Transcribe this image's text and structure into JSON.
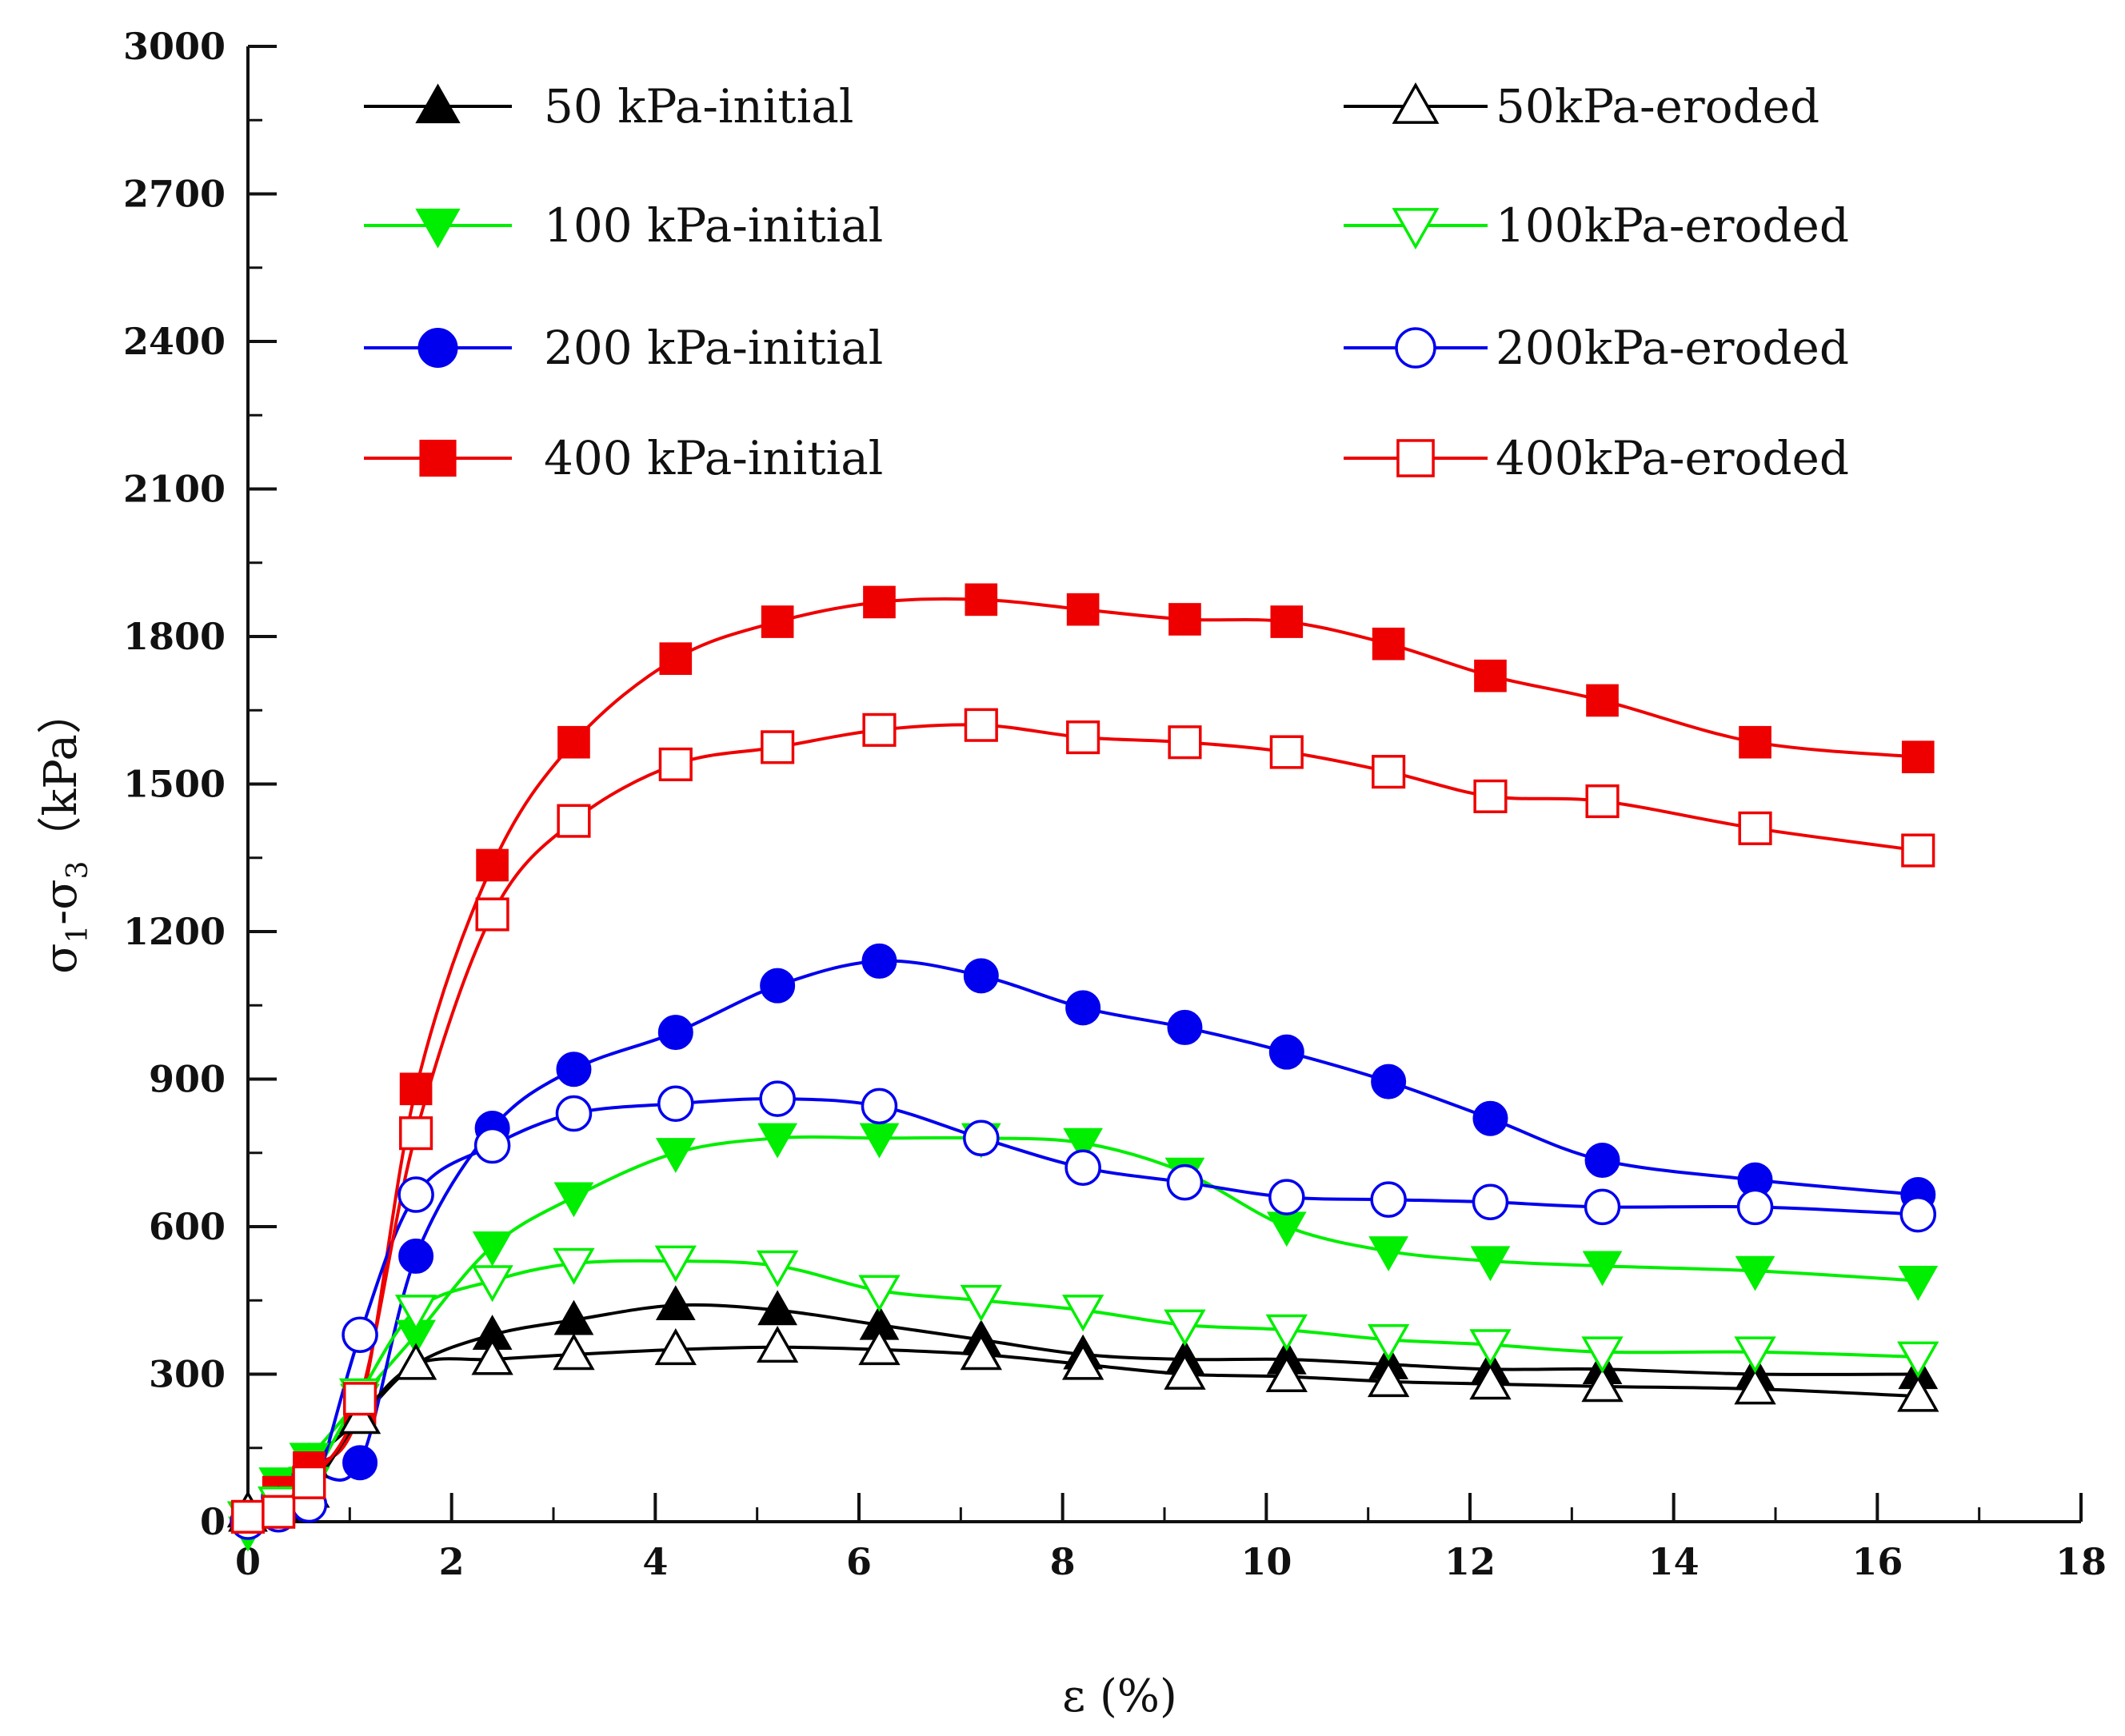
{
  "chart_data": {
    "type": "line",
    "title": "",
    "xlabel": "ε (%)",
    "ylabel": "σ1-σ3（kPa）",
    "ylabel_parts": {
      "sigma1": "σ",
      "sub1": "1",
      "dash": "-σ",
      "sub3": "3",
      "unit": "（kPa）"
    },
    "xlim": [
      0,
      18
    ],
    "ylim": [
      0,
      3000
    ],
    "xticks": [
      0,
      2,
      4,
      6,
      8,
      10,
      12,
      14,
      16,
      18
    ],
    "yticks": [
      0,
      300,
      600,
      900,
      1200,
      1500,
      1800,
      2100,
      2400,
      2700,
      3000
    ],
    "legend": "top, two columns",
    "x": [
      0.0,
      0.3,
      0.6,
      1.1,
      1.65,
      2.4,
      3.2,
      4.2,
      5.2,
      6.2,
      7.2,
      8.2,
      9.2,
      10.2,
      11.2,
      12.2,
      13.3,
      14.8,
      16.4
    ],
    "series": [
      {
        "name": "50 kPa-initial",
        "color": "#000000",
        "marker": "triangle-up",
        "filled": true,
        "values": [
          10,
          60,
          120,
          210,
          320,
          380,
          410,
          440,
          430,
          400,
          370,
          340,
          330,
          330,
          320,
          310,
          310,
          300,
          300
        ]
      },
      {
        "name": "100 kPa-initial",
        "color": "#00ee00",
        "marker": "triangle-down",
        "filled": true,
        "values": [
          -20,
          80,
          130,
          250,
          380,
          560,
          660,
          750,
          780,
          780,
          780,
          770,
          710,
          600,
          550,
          530,
          520,
          510,
          490
        ]
      },
      {
        "name": "200 kPa-initial",
        "color": "#0000ee",
        "marker": "circle",
        "filled": true,
        "values": [
          0,
          50,
          100,
          120,
          540,
          800,
          920,
          995,
          1090,
          1140,
          1110,
          1045,
          1005,
          955,
          895,
          820,
          735,
          695,
          665
        ]
      },
      {
        "name": "400 kPa-initial",
        "color": "#ee0000",
        "marker": "square",
        "filled": true,
        "values": [
          10,
          60,
          110,
          230,
          880,
          1335,
          1585,
          1755,
          1830,
          1870,
          1875,
          1855,
          1835,
          1830,
          1785,
          1720,
          1670,
          1585,
          1555
        ]
      },
      {
        "name": "50kPa-eroded",
        "color": "#000000",
        "marker": "triangle-up",
        "filled": false,
        "values": [
          20,
          30,
          60,
          210,
          320,
          330,
          340,
          350,
          355,
          350,
          340,
          320,
          300,
          295,
          285,
          280,
          275,
          270,
          255
        ]
      },
      {
        "name": "100kPa-eroded",
        "color": "#00ee00",
        "marker": "triangle-down",
        "filled": false,
        "values": [
          10,
          40,
          80,
          260,
          430,
          490,
          525,
          530,
          520,
          470,
          450,
          430,
          400,
          390,
          370,
          360,
          345,
          345,
          335
        ]
      },
      {
        "name": "200kPa-eroded",
        "color": "#0000ee",
        "marker": "circle",
        "filled": false,
        "values": [
          0,
          15,
          35,
          380,
          665,
          765,
          830,
          850,
          860,
          845,
          780,
          720,
          690,
          660,
          655,
          650,
          640,
          640,
          625
        ]
      },
      {
        "name": "400kPa-eroded",
        "color": "#ee0000",
        "marker": "square",
        "filled": false,
        "values": [
          10,
          20,
          80,
          250,
          790,
          1235,
          1425,
          1540,
          1575,
          1610,
          1620,
          1595,
          1585,
          1565,
          1525,
          1475,
          1465,
          1410,
          1365
        ]
      }
    ]
  }
}
